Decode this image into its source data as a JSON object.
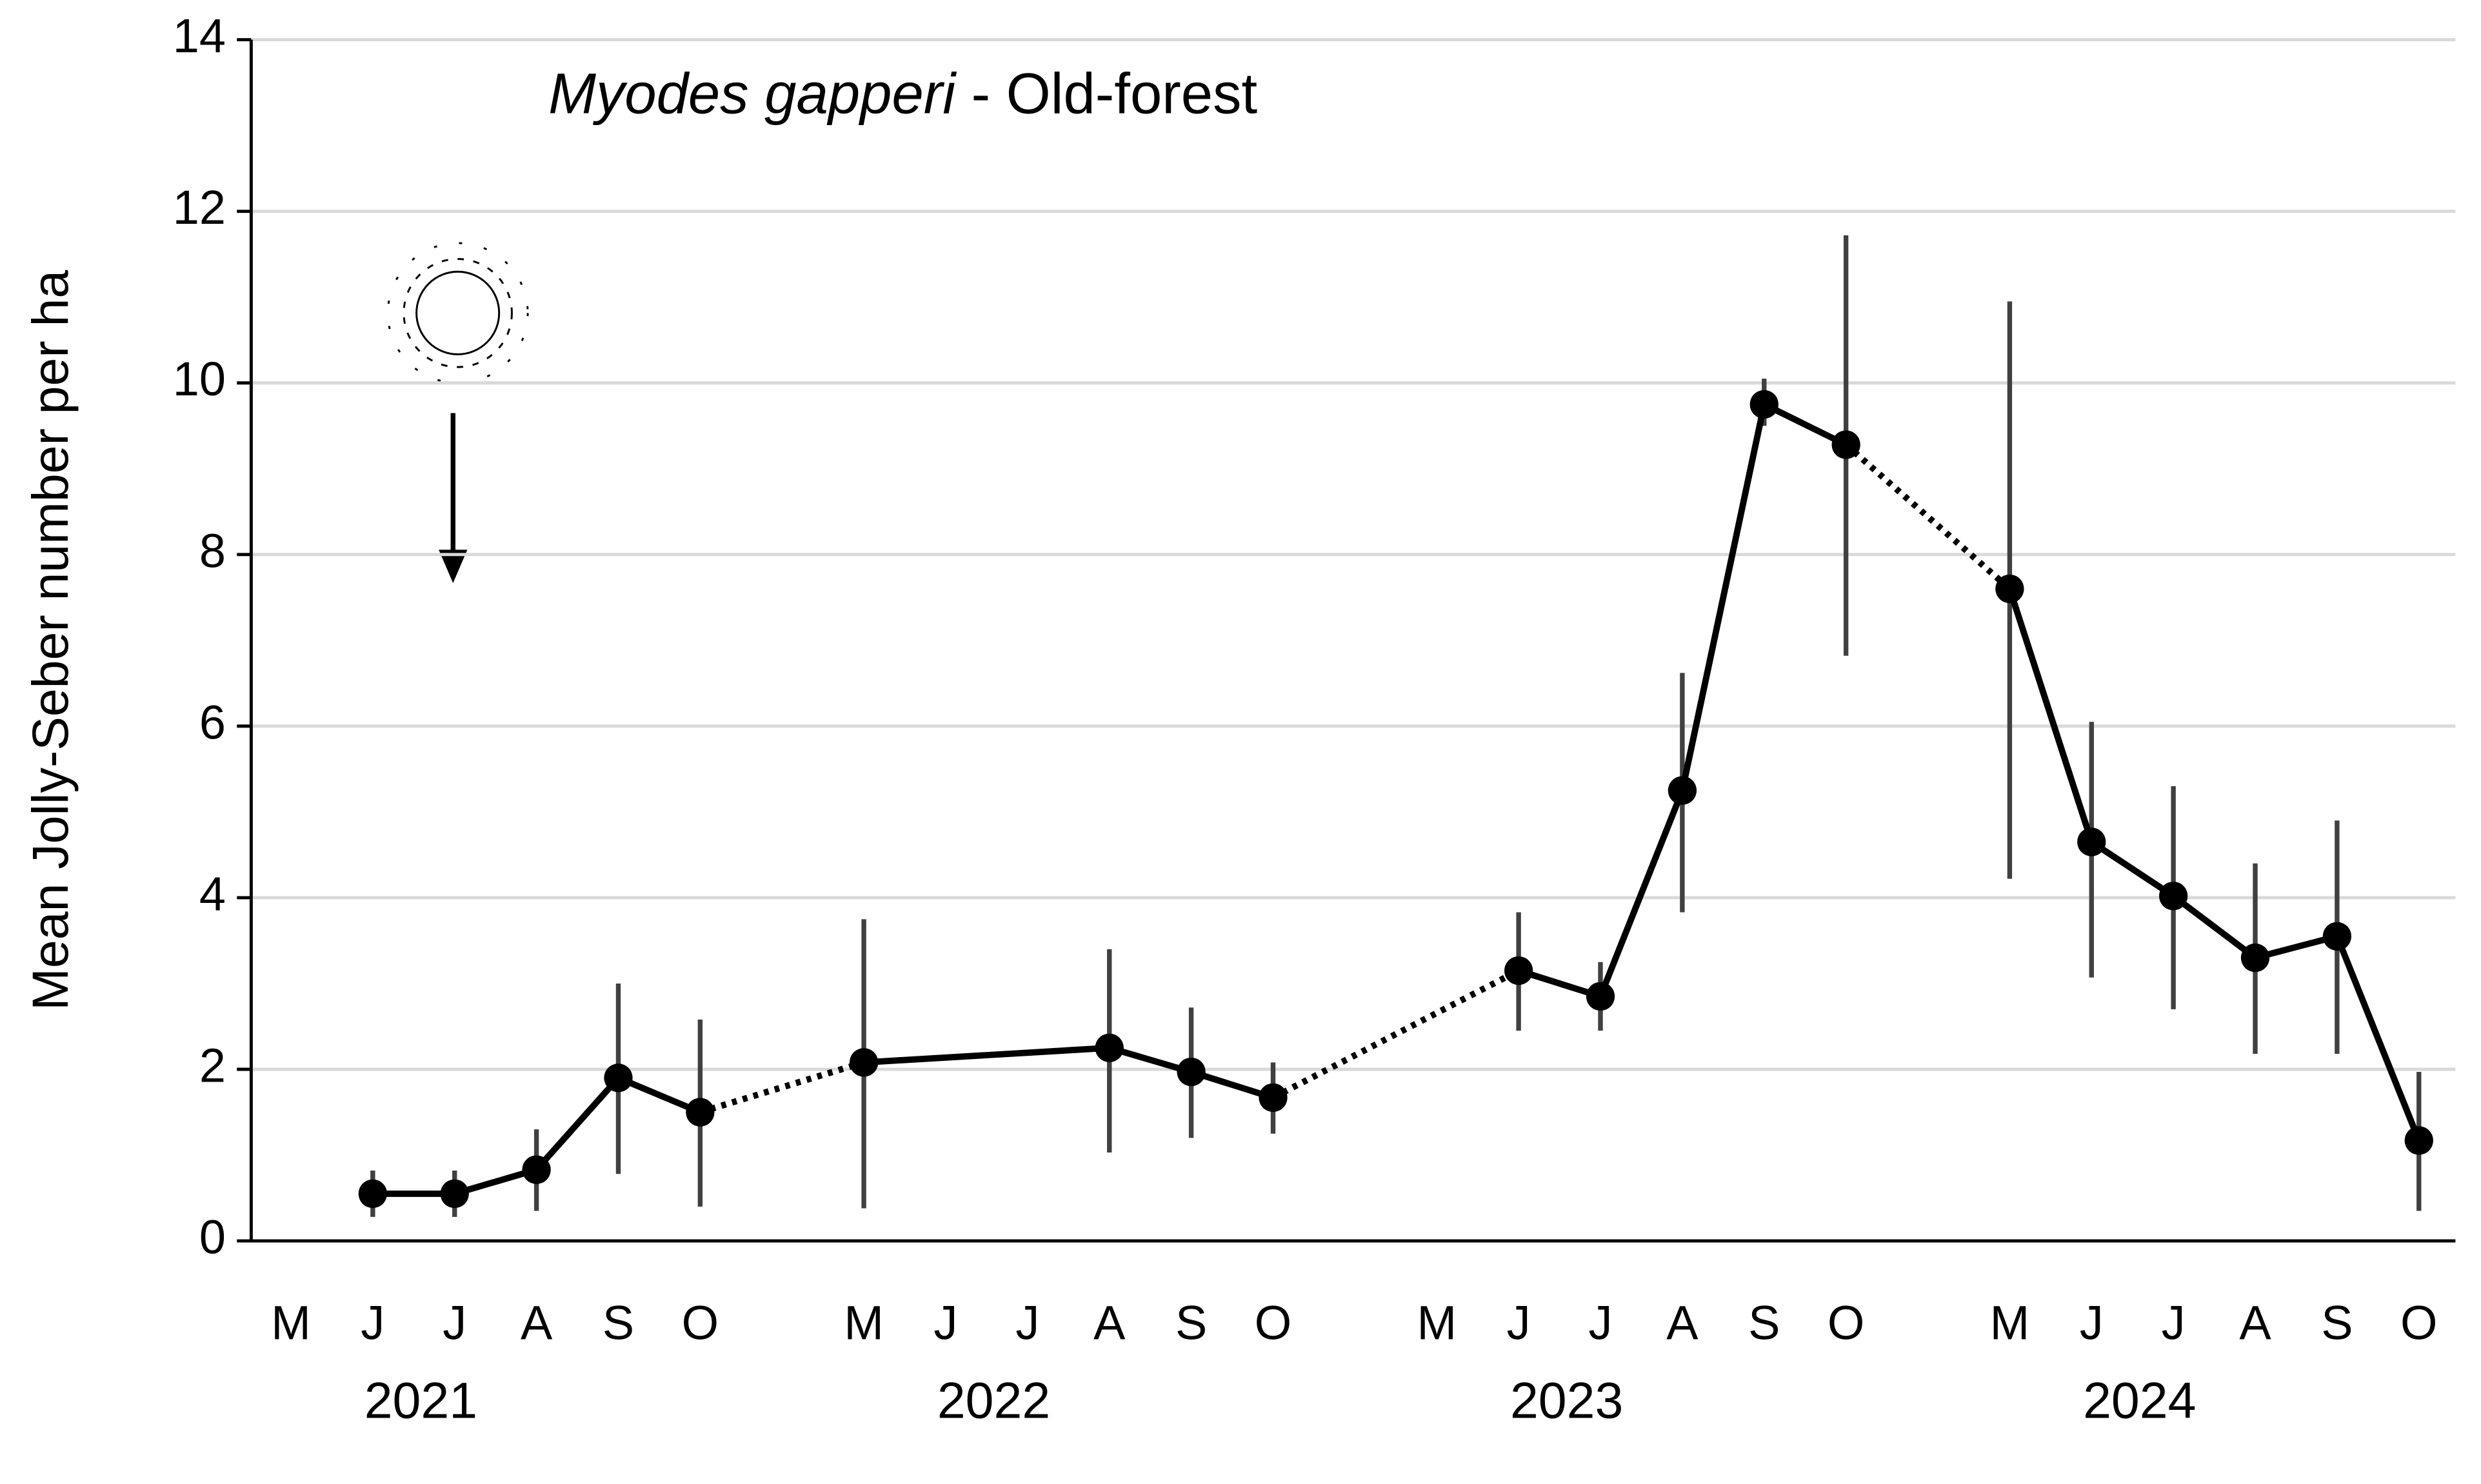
{
  "chart_data": {
    "type": "line",
    "title": {
      "species": "Myodes gapperi",
      "text": "- Old-forest"
    },
    "y_label": "Mean Jolly-Seber number per ha",
    "categories": [
      "M",
      "J",
      "J",
      "A",
      "S",
      "O",
      null,
      "M",
      "J",
      "J",
      "A",
      "S",
      "O",
      null,
      "M",
      "J",
      "J",
      "A",
      "S",
      "O",
      null,
      "M",
      "J",
      "J",
      "A",
      "S",
      "O"
    ],
    "years": [
      "2021",
      "2022",
      "2023",
      "2024"
    ],
    "values": [
      null,
      0.55,
      0.55,
      0.83,
      1.9,
      1.5,
      null,
      2.08,
      null,
      null,
      2.25,
      1.97,
      1.67,
      null,
      null,
      3.15,
      2.85,
      5.25,
      9.75,
      9.28,
      null,
      7.6,
      4.65,
      4.02,
      3.3,
      3.55,
      1.17
    ],
    "error_low": [
      null,
      0.28,
      0.28,
      0.35,
      0.78,
      0.4,
      null,
      0.38,
      null,
      null,
      1.03,
      1.2,
      1.25,
      null,
      null,
      2.45,
      2.45,
      3.83,
      9.5,
      6.82,
      null,
      4.22,
      3.07,
      2.7,
      2.18,
      2.18,
      0.35
    ],
    "error_high": [
      null,
      0.82,
      0.82,
      1.3,
      3.0,
      2.58,
      null,
      3.75,
      null,
      null,
      3.4,
      2.72,
      2.08,
      null,
      null,
      3.83,
      3.25,
      6.62,
      10.05,
      11.72,
      null,
      10.95,
      6.05,
      5.3,
      4.4,
      4.9,
      1.97
    ],
    "color": "#000000",
    "error_color": "#404040",
    "between_years": "dotted",
    "ylim": [
      0,
      14
    ],
    "yticks": [
      0,
      2,
      4,
      6,
      8,
      10,
      12,
      14
    ],
    "grid": true
  }
}
